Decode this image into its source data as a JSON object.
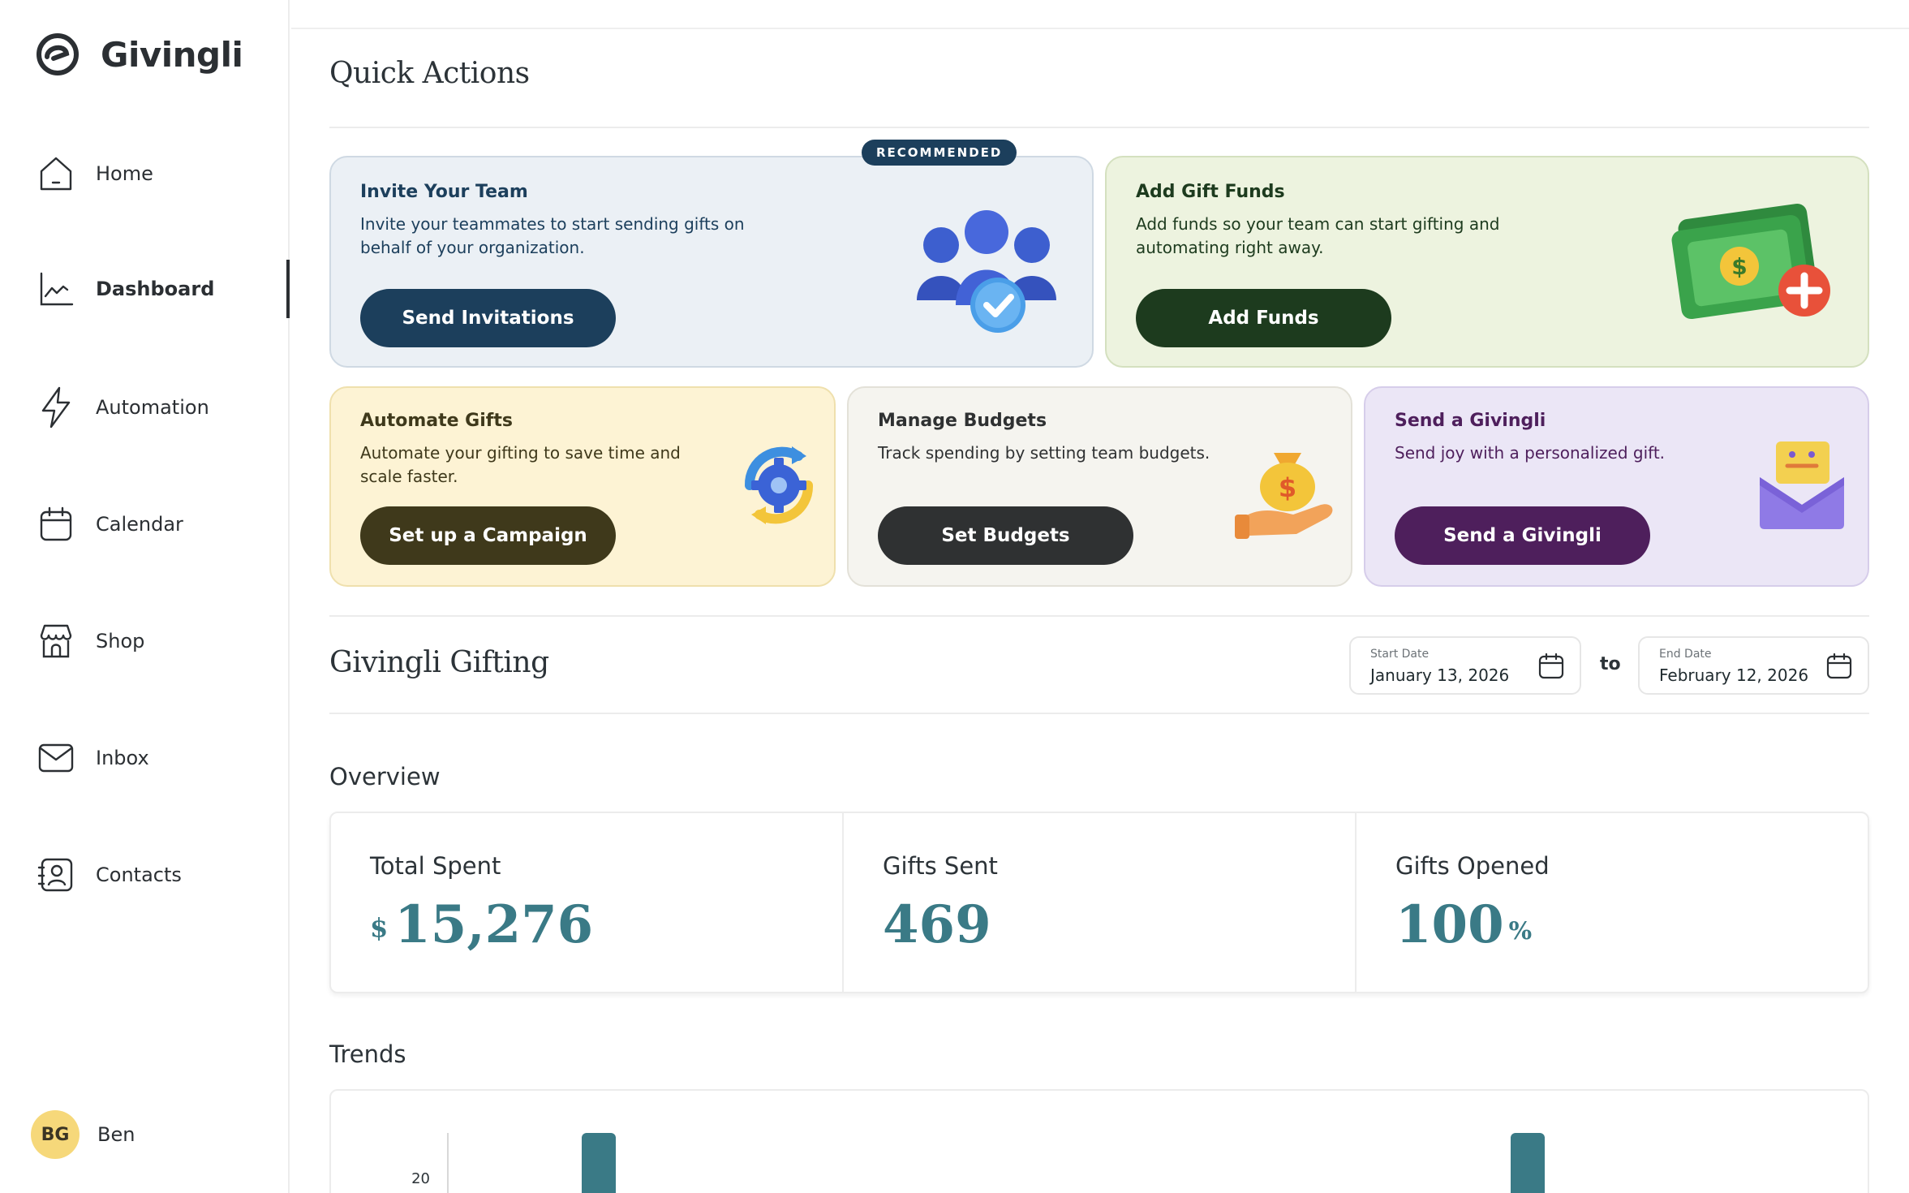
{
  "app": {
    "name": "Givingli"
  },
  "sidebar": {
    "items": [
      {
        "label": "Home",
        "icon": "home-icon"
      },
      {
        "label": "Dashboard",
        "icon": "chart-icon",
        "active": true
      },
      {
        "label": "Automation",
        "icon": "lightning-icon"
      },
      {
        "label": "Calendar",
        "icon": "calendar-icon"
      },
      {
        "label": "Shop",
        "icon": "shop-icon"
      },
      {
        "label": "Inbox",
        "icon": "mail-icon"
      },
      {
        "label": "Contacts",
        "icon": "contacts-icon"
      }
    ],
    "user": {
      "initials": "BG",
      "name": "Ben",
      "avatar_color": "#f6d87a"
    }
  },
  "quick_actions": {
    "title": "Quick Actions",
    "badge": "RECOMMENDED",
    "cards": [
      {
        "title": "Invite Your Team",
        "description": "Invite your teammates to start sending gifts on behalf of your organization.",
        "button": "Send Invitations",
        "bg": "#ebf0f5",
        "border": "#cfd9e3",
        "button_color": "#1c3f5c",
        "text_color": "#1c3f5c"
      },
      {
        "title": "Add Gift Funds",
        "description": "Add funds so your team can start gifting and automating right away.",
        "button": "Add Funds",
        "bg": "#edf3df",
        "border": "#d4e0bf",
        "button_color": "#1d3b1e",
        "text_color": "#1d3b1e"
      },
      {
        "title": "Automate Gifts",
        "description": "Automate your gifting to save time and scale faster.",
        "button": "Set up a Campaign",
        "bg": "#fdf3d4",
        "border": "#efe0ad",
        "button_color": "#3f391b",
        "text_color": "#3f391b"
      },
      {
        "title": "Manage Budgets",
        "description": "Track spending by setting team budgets.",
        "button": "Set Budgets",
        "bg": "#f5f4ef",
        "border": "#e3e1d8",
        "button_color": "#2f3132",
        "text_color": "#2f3132"
      },
      {
        "title": "Send a Givingli",
        "description": "Send joy with a personalized gift.",
        "button": "Send a Givingli",
        "bg": "#ebe6f6",
        "border": "#d6cdea",
        "button_color": "#4e1f5c",
        "text_color": "#4e1f5c"
      }
    ]
  },
  "gifting": {
    "title": "Givingli Gifting",
    "start_date": {
      "label": "Start Date",
      "value": "January 13, 2026"
    },
    "to_label": "to",
    "end_date": {
      "label": "End Date",
      "value": "February 12, 2026"
    }
  },
  "overview": {
    "title": "Overview",
    "stats": [
      {
        "label": "Total Spent",
        "prefix": "$",
        "value": "15,276",
        "suffix": ""
      },
      {
        "label": "Gifts Sent",
        "prefix": "",
        "value": "469",
        "suffix": ""
      },
      {
        "label": "Gifts Opened",
        "prefix": "",
        "value": "100",
        "suffix": "%"
      }
    ],
    "accent_color": "#3a7a86"
  },
  "trends": {
    "title": "Trends"
  },
  "chart_data": {
    "type": "bar",
    "y_tick_visible": "20",
    "bar_color": "#3a7a86",
    "note_values": [
      20,
      20
    ]
  }
}
